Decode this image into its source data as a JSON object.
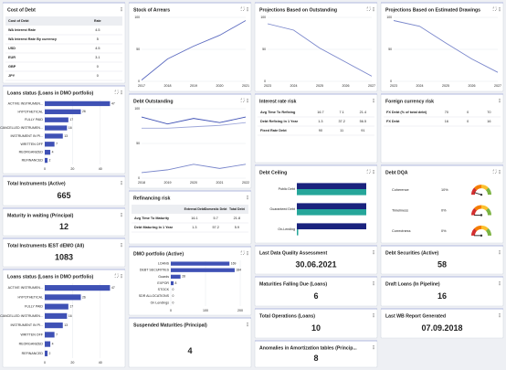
{
  "cards": [
    {
      "title": "Cost of Debt",
      "table": {
        "label_header": "Cost of Debt",
        "columns": [
          "Rate"
        ],
        "rows": [
          {
            "label": "WA Interest Rate",
            "cells": [
              4.5
            ]
          },
          {
            "label": "WA Interest Rate By currency",
            "cells": [
              5
            ]
          },
          {
            "label": "USD",
            "cells": [
              4.5
            ]
          },
          {
            "label": "EUR",
            "cells": [
              3.1
            ]
          },
          {
            "label": "GBP",
            "cells": [
              0
            ]
          },
          {
            "label": "JPY",
            "cells": [
              0
            ]
          }
        ]
      }
    },
    {
      "title": "Loans status (Loans in DMO portfolio)",
      "chart_data": {
        "type": "bar",
        "horizontal": true,
        "categories": [
          "ACTIVE INSTRUMEN...",
          "HYPOTHETICAL",
          "FULLY PAID",
          "CANCELLED INSTRUMEN...",
          "INSTRUMENT IN PI...",
          "WRITTEN OFF",
          "REORGANIZED",
          "REFINANCED"
        ],
        "values": [
          47,
          26,
          17,
          16,
          13,
          7,
          4,
          2
        ],
        "color": "#3f51b5",
        "xlim": [
          0,
          50
        ],
        "xticks": [
          0,
          20,
          40
        ],
        "grid": true
      }
    },
    {
      "title": "Total Instruments (Active)",
      "value": 665
    },
    {
      "title": "Maturity in waiting (Principal)",
      "value": 12
    },
    {
      "title": "Total Instruments IEST dEMO (All)",
      "value": 1083
    },
    {
      "title": "Loans status (Loans in DMO portfolio)",
      "chart_data": {
        "type": "bar",
        "horizontal": true,
        "categories": [
          "ACTIVE INSTRUMEN...",
          "HYPOTHETICAL",
          "FULLY PAID",
          "CANCELLED INSTRUMEN...",
          "INSTRUMENT IN PI...",
          "WRITTEN OFF",
          "REORGANIZED",
          "REFINANCED"
        ],
        "values": [
          47,
          26,
          17,
          16,
          13,
          7,
          4,
          2
        ],
        "color": "#3f51b5",
        "xlim": [
          0,
          50
        ],
        "xticks": [
          0,
          20,
          40
        ],
        "grid": true
      }
    },
    {
      "title": "Stock of Arrears",
      "chart_data": {
        "type": "line",
        "categories": [
          "2017",
          "2018",
          "2019",
          "2020",
          "2021"
        ],
        "series": [
          {
            "color": "#5c6bc0",
            "values": [
              2,
              35,
              55,
              72,
              95
            ]
          }
        ],
        "ylim": [
          0,
          100
        ],
        "yticks": [
          0,
          50,
          100
        ],
        "grid": true
      }
    },
    {
      "title": "Debt Outstanding",
      "chart_data": {
        "type": "line",
        "categories": [
          "2018",
          "2019",
          "2020",
          "2021",
          "2022"
        ],
        "series": [
          {
            "color": "#3f51b5",
            "values": [
              88,
              78,
              86,
              80,
              88
            ]
          },
          {
            "color": "#9fa8da",
            "values": [
              72,
              72,
              74,
              76,
              80
            ]
          },
          {
            "color": "#7986cb",
            "values": [
              8,
              12,
              20,
              14,
              20
            ]
          }
        ],
        "ylim": [
          0,
          100
        ],
        "yticks": [
          0,
          50,
          100
        ],
        "grid": true
      }
    },
    {
      "title": "Refinancing risk",
      "table": {
        "columns": [
          "External Debt",
          "Domestic Debt",
          "Total Debt"
        ],
        "rows": [
          {
            "label": "Avg Time To Maturity",
            "cells": [
              16.1,
              5.7,
              21.8
            ]
          },
          {
            "label": "Debt Maturing In 1 Year",
            "cells": [
              1.3,
              57.2,
              5.9
            ]
          }
        ]
      }
    },
    {
      "title": "DMO portfolio (Active)",
      "chart_data": {
        "type": "bar",
        "horizontal": true,
        "categories": [
          "LOANS",
          "DEBT SECURITIES",
          "Guards",
          "EXPOR",
          "STOCK",
          "SDR ALLOCATIONS",
          "On Lendings"
        ],
        "values": [
          169,
          184,
          28,
          8,
          0,
          0,
          0
        ],
        "color": "#3f51b5",
        "xlim": [
          0,
          200
        ],
        "xticks": [
          0,
          100,
          200
        ],
        "grid": true
      }
    },
    {
      "title": "Suspended Maturities (Principal)",
      "value": 4
    },
    {
      "title": "Projections Based on Outstanding",
      "chart_data": {
        "type": "line",
        "categories": [
          "2023",
          "2024",
          "2025",
          "2026",
          "2027"
        ],
        "series": [
          {
            "color": "#7986cb",
            "values": [
              90,
              80,
              52,
              30,
              8
            ]
          }
        ],
        "ylim": [
          0,
          100
        ],
        "yticks": [
          0,
          50,
          100
        ],
        "grid": true
      }
    },
    {
      "title": "Interest rate risk",
      "table": {
        "rows": [
          {
            "label": "Avg Time To Refixing",
            "cells": [
              16.7,
              7.1,
              21.4
            ]
          },
          {
            "label": "Debt Refixing In 1 Year",
            "cells": [
              1.3,
              37.2,
              56.5
            ]
          },
          {
            "label": "Fixed Rate Debt",
            "cells": [
              90,
              11,
              91
            ]
          }
        ]
      }
    },
    {
      "title": "Debt Ceiling",
      "chart_data": {
        "type": "bar",
        "horizontal": true,
        "categories": [
          "Public Debt",
          "Guaranteed Debt",
          "On-Lending"
        ],
        "series": [
          {
            "color": "#1a237e",
            "values": [
              100,
              100,
              100
            ]
          },
          {
            "color": "#26a69a",
            "values": [
              100,
              100,
              2
            ]
          }
        ],
        "xlim": [
          0,
          100
        ]
      }
    },
    {
      "title": "Last Data Quality Assessment",
      "value": "30.06.2021"
    },
    {
      "title": "Maturities Falling Due (Loans)",
      "value": 6
    },
    {
      "title": "Total Operations (Loans)",
      "value": 10
    },
    {
      "title": "Anomalies in Amortization tables (Princip...",
      "value": 8
    },
    {
      "title": "Projections Based on Estimated Drawings",
      "chart_data": {
        "type": "line",
        "categories": [
          "2023",
          "2024",
          "2025",
          "2026",
          "2027"
        ],
        "series": [
          {
            "color": "#7986cb",
            "values": [
              95,
              86,
              60,
              35,
              14
            ]
          }
        ],
        "ylim": [
          0,
          100
        ],
        "yticks": [
          0,
          50,
          100
        ],
        "grid": true
      }
    },
    {
      "title": "Foreign currency risk",
      "table": {
        "rows": [
          {
            "label": "FX Debt (% of total debt)",
            "cells": [
              70,
              0,
              70
            ]
          },
          {
            "label": "FX Debt",
            "cells": [
              16,
              0,
              16
            ]
          }
        ]
      }
    },
    {
      "title": "Debt DQA",
      "chart_data": {
        "type": "gauge",
        "categories": [
          "Coherence",
          "Timeliness",
          "Correctness"
        ],
        "values": [
          10,
          0,
          0
        ],
        "value_labels": [
          "10%",
          "0%",
          "0%"
        ],
        "ylim": [
          0,
          100
        ]
      }
    },
    {
      "title": "Debt Securities (Active)",
      "value": 58
    },
    {
      "title": "Draft Loans (In Pipeline)",
      "value": 16
    },
    {
      "title": "Last WB Report Generated",
      "value": "07.09.2018"
    }
  ]
}
